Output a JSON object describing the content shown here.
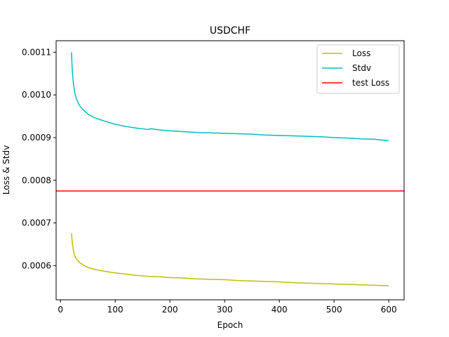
{
  "chart_data": {
    "type": "line",
    "title": "USDCHF",
    "xlabel": "Epoch",
    "ylabel": "Loss & Stdv",
    "xlim": [
      -8,
      628
    ],
    "ylim": [
      0.00052,
      0.001127
    ],
    "xticks": [
      0,
      100,
      200,
      300,
      400,
      500,
      600
    ],
    "xtick_labels": [
      "0",
      "100",
      "200",
      "300",
      "400",
      "500",
      "600"
    ],
    "yticks": [
      0.0006,
      0.0007,
      0.0008,
      0.0009,
      0.001,
      0.0011
    ],
    "ytick_labels": [
      "0.0006",
      "0.0007",
      "0.0008",
      "0.0009",
      "0.0010",
      "0.0011"
    ],
    "grid": false,
    "legend_position": "top-right",
    "series": [
      {
        "name": "Loss",
        "color": "#bfbf00",
        "x": [
          20,
          22,
          24,
          26,
          28,
          30,
          33,
          36,
          40,
          45,
          50,
          60,
          70,
          80,
          90,
          100,
          120,
          140,
          160,
          180,
          200,
          225,
          250,
          275,
          300,
          325,
          350,
          375,
          400,
          425,
          450,
          475,
          500,
          525,
          550,
          575,
          600
        ],
        "values": [
          0.000676,
          0.000648,
          0.000633,
          0.000624,
          0.000618,
          0.000614,
          0.00061,
          0.000606,
          0.000603,
          0.000599,
          0.000596,
          0.000592,
          0.000589,
          0.000587,
          0.000585,
          0.000583,
          0.00058,
          0.000577,
          0.000575,
          0.000574,
          0.000572,
          0.000571,
          0.000569,
          0.000568,
          0.000567,
          0.000565,
          0.000564,
          0.000563,
          0.000562,
          0.00056,
          0.000559,
          0.000558,
          0.000557,
          0.000556,
          0.000555,
          0.000554,
          0.000553
        ]
      },
      {
        "name": "Stdv",
        "color": "#00bfbf",
        "x": [
          20,
          21,
          22,
          23,
          24,
          26,
          28,
          30,
          33,
          36,
          40,
          45,
          50,
          60,
          70,
          80,
          90,
          100,
          120,
          140,
          160,
          165,
          170,
          180,
          200,
          225,
          250,
          275,
          300,
          325,
          350,
          375,
          400,
          425,
          450,
          475,
          500,
          525,
          550,
          575,
          590,
          600
        ],
        "values": [
          0.0011,
          0.001072,
          0.00105,
          0.001034,
          0.001022,
          0.001006,
          0.000996,
          0.000988,
          0.00098,
          0.000973,
          0.000967,
          0.000961,
          0.000955,
          0.000948,
          0.000943,
          0.000939,
          0.000935,
          0.000931,
          0.000926,
          0.000922,
          0.000919,
          0.000921,
          0.00092,
          0.000918,
          0.000916,
          0.000914,
          0.000912,
          0.000911,
          0.00091,
          0.000909,
          0.000908,
          0.000906,
          0.000905,
          0.000904,
          0.000903,
          0.000902,
          0.0009,
          0.000899,
          0.000897,
          0.000896,
          0.000894,
          0.000893
        ]
      },
      {
        "name": "test Loss",
        "color": "#ff0000",
        "type": "hline",
        "values": [
          0.000775
        ]
      }
    ]
  }
}
